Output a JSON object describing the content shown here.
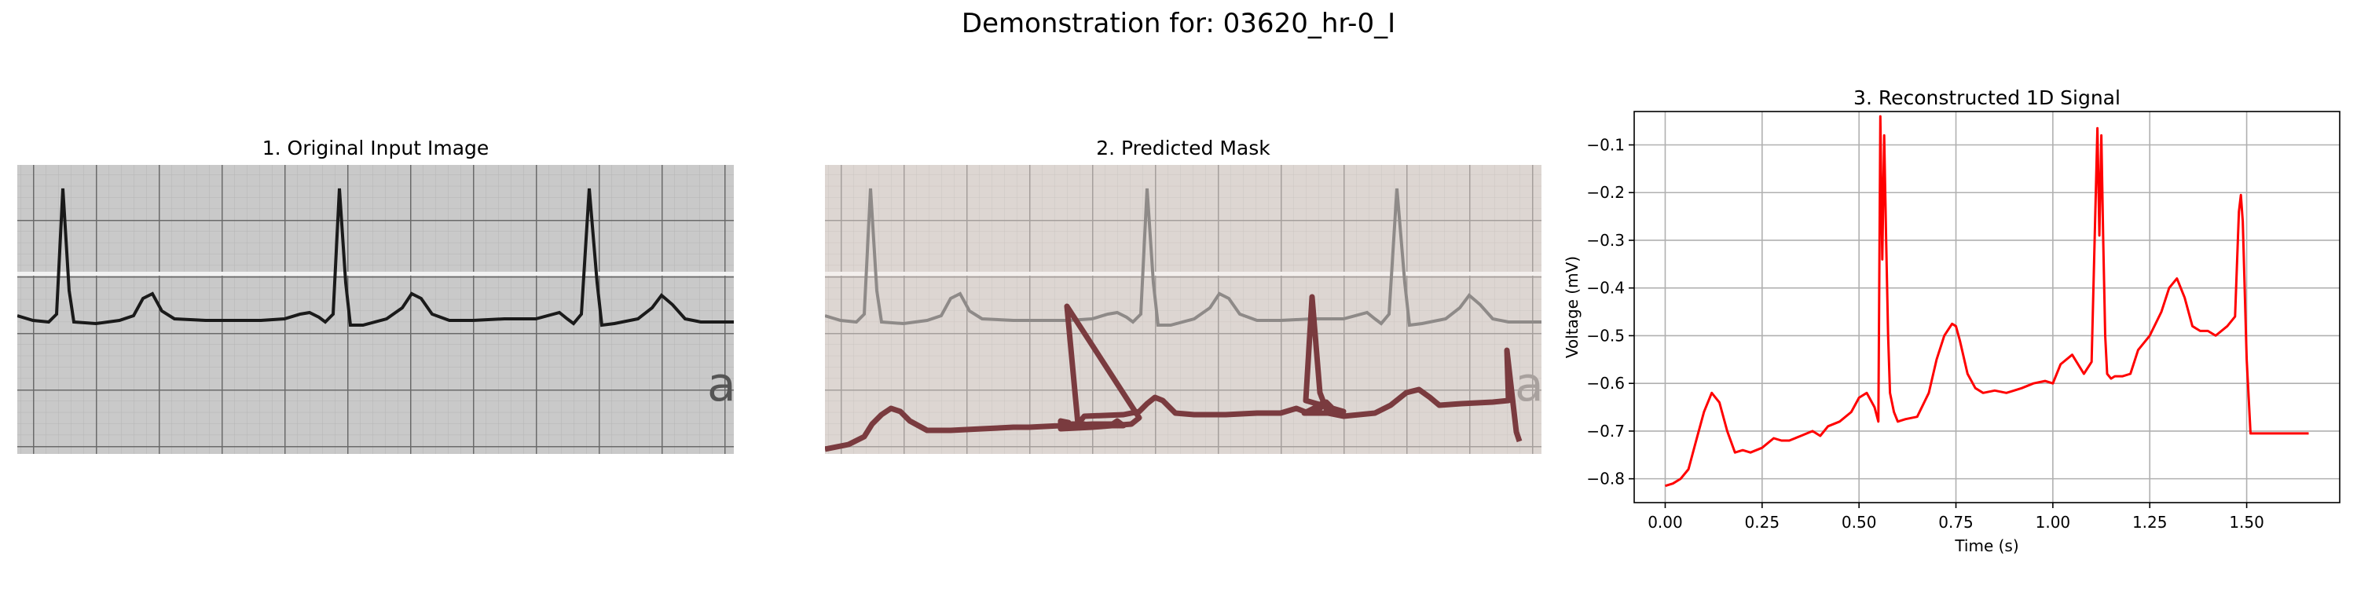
{
  "figure": {
    "suptitle": "Demonstration for: 03620_hr-0_I"
  },
  "panels": {
    "original": {
      "title": "1. Original Input Image",
      "lead_glyph": "a"
    },
    "mask": {
      "title": "2. Predicted Mask",
      "lead_glyph": "a"
    },
    "signal": {
      "title": "3. Reconstructed 1D Signal"
    }
  },
  "colors": {
    "signal_line": "#ff0000",
    "mask_trace": "#7a3b3f",
    "grid_major": "#555555",
    "paper_gray": "#c9c9c9",
    "mask_bg": "#ddd6d2"
  },
  "chart_data": {
    "type": "line",
    "title": "3. Reconstructed 1D Signal",
    "xlabel": "Time (s)",
    "ylabel": "Voltage (mV)",
    "xlim": [
      -0.08,
      1.74
    ],
    "ylim": [
      -0.85,
      -0.03
    ],
    "xticks": [
      0.0,
      0.25,
      0.5,
      0.75,
      1.0,
      1.25,
      1.5
    ],
    "xtick_labels": [
      "0.00",
      "0.25",
      "0.50",
      "0.75",
      "1.00",
      "1.25",
      "1.50"
    ],
    "yticks": [
      -0.8,
      -0.7,
      -0.6,
      -0.5,
      -0.4,
      -0.3,
      -0.2,
      -0.1
    ],
    "ytick_labels": [
      "−0.8",
      "−0.7",
      "−0.6",
      "−0.5",
      "−0.4",
      "−0.3",
      "−0.2",
      "−0.1"
    ],
    "grid": true,
    "series": [
      {
        "x": [
          0.0,
          0.02,
          0.04,
          0.06,
          0.08,
          0.1,
          0.12,
          0.14,
          0.16,
          0.18,
          0.2,
          0.22,
          0.25,
          0.28,
          0.3,
          0.32,
          0.35,
          0.38,
          0.4,
          0.42,
          0.45,
          0.48,
          0.5,
          0.52,
          0.54,
          0.55,
          0.555,
          0.56,
          0.565,
          0.57,
          0.575,
          0.58,
          0.59,
          0.6,
          0.62,
          0.65,
          0.68,
          0.7,
          0.72,
          0.74,
          0.75,
          0.76,
          0.78,
          0.8,
          0.82,
          0.85,
          0.88,
          0.9,
          0.92,
          0.95,
          0.98,
          1.0,
          1.02,
          1.05,
          1.08,
          1.1,
          1.115,
          1.12,
          1.125,
          1.13,
          1.135,
          1.14,
          1.15,
          1.16,
          1.18,
          1.2,
          1.22,
          1.25,
          1.28,
          1.3,
          1.32,
          1.34,
          1.36,
          1.38,
          1.4,
          1.42,
          1.45,
          1.47,
          1.48,
          1.485,
          1.49,
          1.5,
          1.51,
          1.55,
          1.6,
          1.66
        ],
        "y": [
          -0.815,
          -0.81,
          -0.8,
          -0.78,
          -0.72,
          -0.66,
          -0.62,
          -0.64,
          -0.7,
          -0.745,
          -0.74,
          -0.745,
          -0.735,
          -0.715,
          -0.72,
          -0.72,
          -0.71,
          -0.7,
          -0.71,
          -0.69,
          -0.68,
          -0.66,
          -0.63,
          -0.62,
          -0.65,
          -0.68,
          -0.04,
          -0.34,
          -0.08,
          -0.3,
          -0.5,
          -0.62,
          -0.66,
          -0.68,
          -0.675,
          -0.67,
          -0.62,
          -0.55,
          -0.5,
          -0.475,
          -0.48,
          -0.51,
          -0.58,
          -0.61,
          -0.62,
          -0.615,
          -0.62,
          -0.615,
          -0.61,
          -0.6,
          -0.595,
          -0.6,
          -0.56,
          -0.54,
          -0.58,
          -0.555,
          -0.065,
          -0.29,
          -0.08,
          -0.3,
          -0.5,
          -0.58,
          -0.59,
          -0.585,
          -0.585,
          -0.58,
          -0.53,
          -0.5,
          -0.45,
          -0.4,
          -0.38,
          -0.42,
          -0.48,
          -0.49,
          -0.49,
          -0.5,
          -0.48,
          -0.46,
          -0.24,
          -0.205,
          -0.26,
          -0.55,
          -0.705,
          -0.705,
          -0.705,
          -0.705
        ]
      }
    ]
  }
}
